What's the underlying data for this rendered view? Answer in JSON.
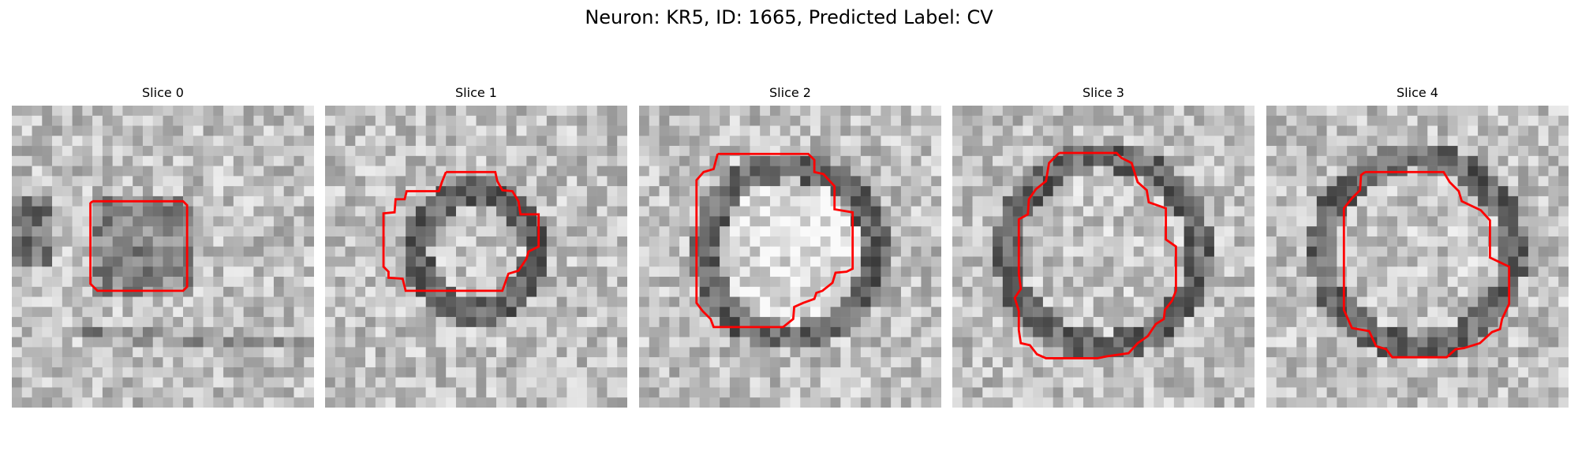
{
  "figure": {
    "title": "Neuron: KR5, ID: 1665, Predicted Label: CV"
  },
  "panels": [
    {
      "title": "Slice 0",
      "contour_shape": "square"
    },
    {
      "title": "Slice 1",
      "contour_shape": "small-octagon"
    },
    {
      "title": "Slice 2",
      "contour_shape": "octagon"
    },
    {
      "title": "Slice 3",
      "contour_shape": "tall-octagon"
    },
    {
      "title": "Slice 4",
      "contour_shape": "large-octagon"
    }
  ],
  "colors": {
    "background": "#ffffff",
    "contour": "#ff0000",
    "image_colormap": "grayscale"
  }
}
